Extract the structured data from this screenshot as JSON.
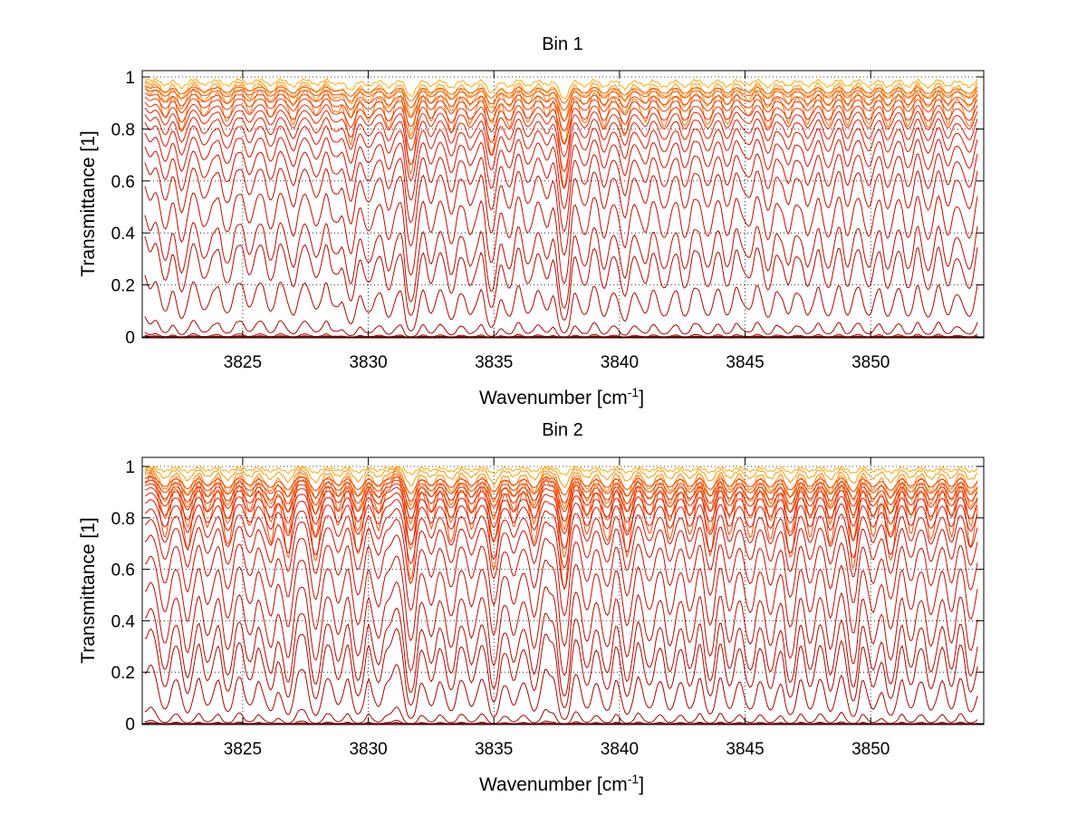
{
  "chart_data": [
    {
      "type": "line",
      "title": "Bin 1",
      "xlabel": "Wavenumber [cm",
      "xlabel_sup": "-1",
      "xlabel_end": "]",
      "ylabel": "Transmittance [1]",
      "xlim": [
        3821,
        3854.5
      ],
      "ylim": [
        0,
        1
      ],
      "xticks": [
        3825,
        3830,
        3835,
        3840,
        3845,
        3850
      ],
      "yticks": [
        0,
        0.2,
        0.4,
        0.6,
        0.8,
        1
      ],
      "xtick_labels": [
        "3825",
        "3830",
        "3835",
        "3840",
        "3845",
        "3850"
      ],
      "ytick_labels": [
        "0",
        "0.2",
        "0.4",
        "0.6",
        "0.8",
        "1"
      ],
      "grid": true,
      "series_count": 24,
      "baseline_levels": [
        0.995,
        0.99,
        0.985,
        0.975,
        0.965,
        0.955,
        0.94,
        0.925,
        0.905,
        0.885,
        0.86,
        0.83,
        0.79,
        0.74,
        0.68,
        0.59,
        0.48,
        0.4,
        0.25,
        0.085,
        0.02,
        0.008,
        0.003,
        0.001
      ],
      "absorption_lines": [
        {
          "x": 3821.9,
          "depth": 0.25
        },
        {
          "x": 3822.6,
          "depth": 0.35
        },
        {
          "x": 3823.5,
          "depth": 0.25
        },
        {
          "x": 3824.4,
          "depth": 0.3
        },
        {
          "x": 3825.3,
          "depth": 0.2
        },
        {
          "x": 3826.1,
          "depth": 0.25
        },
        {
          "x": 3827.0,
          "depth": 0.3
        },
        {
          "x": 3827.9,
          "depth": 0.25
        },
        {
          "x": 3828.7,
          "depth": 0.2
        },
        {
          "x": 3829.3,
          "depth": 0.45
        },
        {
          "x": 3830.0,
          "depth": 0.3
        },
        {
          "x": 3830.8,
          "depth": 0.35
        },
        {
          "x": 3831.7,
          "depth": 0.75
        },
        {
          "x": 3832.5,
          "depth": 0.3
        },
        {
          "x": 3833.3,
          "depth": 0.35
        },
        {
          "x": 3834.1,
          "depth": 0.3
        },
        {
          "x": 3834.9,
          "depth": 0.6
        },
        {
          "x": 3835.6,
          "depth": 0.35
        },
        {
          "x": 3836.4,
          "depth": 0.3
        },
        {
          "x": 3837.1,
          "depth": 0.25
        },
        {
          "x": 3837.8,
          "depth": 0.85
        },
        {
          "x": 3838.6,
          "depth": 0.3
        },
        {
          "x": 3839.4,
          "depth": 0.35
        },
        {
          "x": 3840.2,
          "depth": 0.4
        },
        {
          "x": 3841.0,
          "depth": 0.3
        },
        {
          "x": 3841.8,
          "depth": 0.35
        },
        {
          "x": 3842.6,
          "depth": 0.3
        },
        {
          "x": 3843.5,
          "depth": 0.35
        },
        {
          "x": 3844.3,
          "depth": 0.3
        },
        {
          "x": 3845.1,
          "depth": 0.25
        },
        {
          "x": 3845.9,
          "depth": 0.35
        },
        {
          "x": 3846.7,
          "depth": 0.3
        },
        {
          "x": 3847.5,
          "depth": 0.3
        },
        {
          "x": 3848.3,
          "depth": 0.35
        },
        {
          "x": 3849.1,
          "depth": 0.3
        },
        {
          "x": 3849.9,
          "depth": 0.3
        },
        {
          "x": 3850.7,
          "depth": 0.35
        },
        {
          "x": 3851.5,
          "depth": 0.3
        },
        {
          "x": 3852.3,
          "depth": 0.35
        },
        {
          "x": 3853.1,
          "depth": 0.3
        },
        {
          "x": 3853.9,
          "depth": 0.35
        }
      ]
    },
    {
      "type": "line",
      "title": "Bin 2",
      "xlabel": "Wavenumber [cm",
      "xlabel_sup": "-1",
      "xlabel_end": "]",
      "ylabel": "Transmittance [1]",
      "xlim": [
        3821,
        3854.5
      ],
      "ylim": [
        0,
        1
      ],
      "xticks": [
        3825,
        3830,
        3835,
        3840,
        3845,
        3850
      ],
      "yticks": [
        0,
        0.2,
        0.4,
        0.6,
        0.8,
        1
      ],
      "xtick_labels": [
        "3825",
        "3830",
        "3835",
        "3840",
        "3845",
        "3850"
      ],
      "ytick_labels": [
        "0",
        "0.2",
        "0.4",
        "0.6",
        "0.8",
        "1"
      ],
      "grid": true,
      "series_count": 24,
      "baseline_levels": [
        0.998,
        0.995,
        0.99,
        0.985,
        0.978,
        0.97,
        0.96,
        0.948,
        0.935,
        0.92,
        0.9,
        0.875,
        0.84,
        0.8,
        0.74,
        0.66,
        0.56,
        0.46,
        0.38,
        0.24,
        0.07,
        0.015,
        0.005,
        0.001
      ],
      "absorption_lines": [
        {
          "x": 3821.9,
          "depth": 0.45
        },
        {
          "x": 3822.8,
          "depth": 0.5
        },
        {
          "x": 3823.6,
          "depth": 0.35
        },
        {
          "x": 3824.4,
          "depth": 0.5
        },
        {
          "x": 3825.3,
          "depth": 0.35
        },
        {
          "x": 3826.1,
          "depth": 0.45
        },
        {
          "x": 3826.8,
          "depth": 0.55
        },
        {
          "x": 3827.9,
          "depth": 0.6
        },
        {
          "x": 3828.8,
          "depth": 0.35
        },
        {
          "x": 3829.6,
          "depth": 0.55
        },
        {
          "x": 3830.4,
          "depth": 0.35
        },
        {
          "x": 3831.7,
          "depth": 0.75
        },
        {
          "x": 3832.5,
          "depth": 0.35
        },
        {
          "x": 3833.3,
          "depth": 0.45
        },
        {
          "x": 3834.1,
          "depth": 0.35
        },
        {
          "x": 3835.0,
          "depth": 0.65
        },
        {
          "x": 3835.8,
          "depth": 0.35
        },
        {
          "x": 3836.6,
          "depth": 0.45
        },
        {
          "x": 3837.8,
          "depth": 0.8
        },
        {
          "x": 3838.7,
          "depth": 0.4
        },
        {
          "x": 3839.5,
          "depth": 0.45
        },
        {
          "x": 3840.3,
          "depth": 0.55
        },
        {
          "x": 3841.2,
          "depth": 0.4
        },
        {
          "x": 3842.0,
          "depth": 0.45
        },
        {
          "x": 3842.8,
          "depth": 0.4
        },
        {
          "x": 3843.6,
          "depth": 0.55
        },
        {
          "x": 3844.4,
          "depth": 0.4
        },
        {
          "x": 3845.2,
          "depth": 0.45
        },
        {
          "x": 3846.0,
          "depth": 0.4
        },
        {
          "x": 3846.8,
          "depth": 0.6
        },
        {
          "x": 3847.6,
          "depth": 0.4
        },
        {
          "x": 3848.4,
          "depth": 0.45
        },
        {
          "x": 3849.3,
          "depth": 0.6
        },
        {
          "x": 3850.1,
          "depth": 0.4
        },
        {
          "x": 3850.8,
          "depth": 0.6
        },
        {
          "x": 3851.6,
          "depth": 0.4
        },
        {
          "x": 3852.4,
          "depth": 0.45
        },
        {
          "x": 3853.2,
          "depth": 0.4
        },
        {
          "x": 3854.0,
          "depth": 0.5
        }
      ]
    }
  ]
}
